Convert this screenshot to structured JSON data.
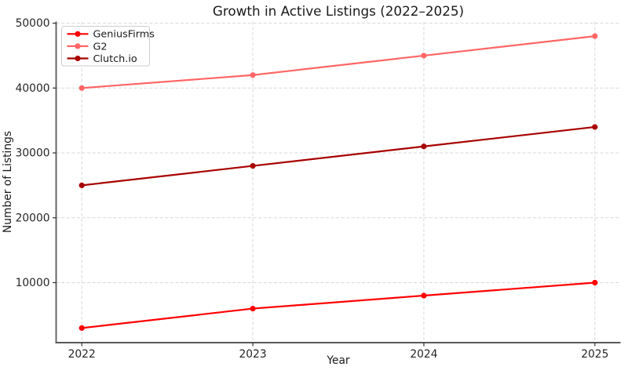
{
  "chart_data": {
    "type": "line",
    "title": "Growth in Active Listings (2022–2025)",
    "xlabel": "Year",
    "ylabel": "Number of Listings",
    "x": [
      2022,
      2023,
      2024,
      2025
    ],
    "series": [
      {
        "name": "GeniusFirms",
        "color": "#ff0000",
        "values": [
          3000,
          6000,
          8000,
          10000
        ]
      },
      {
        "name": "G2",
        "color": "#ff6666",
        "values": [
          40000,
          42000,
          45000,
          48000
        ]
      },
      {
        "name": "Clutch.io",
        "color": "#a80000",
        "values": [
          25000,
          28000,
          31000,
          34000
        ]
      }
    ],
    "yticks": [
      10000,
      20000,
      30000,
      40000,
      50000
    ],
    "xticks": [
      2022,
      2023,
      2024,
      2025
    ],
    "ylim": [
      750,
      50250
    ],
    "xlim": [
      2021.85,
      2025.15
    ],
    "grid": true,
    "grid_style": "dashed",
    "legend_position": "upper left",
    "colors": {
      "grid": "#d9d9d9",
      "spine": "#595959",
      "tick": "#333333",
      "legend_border": "#cccccc",
      "legend_bg": "#ffffff"
    }
  }
}
